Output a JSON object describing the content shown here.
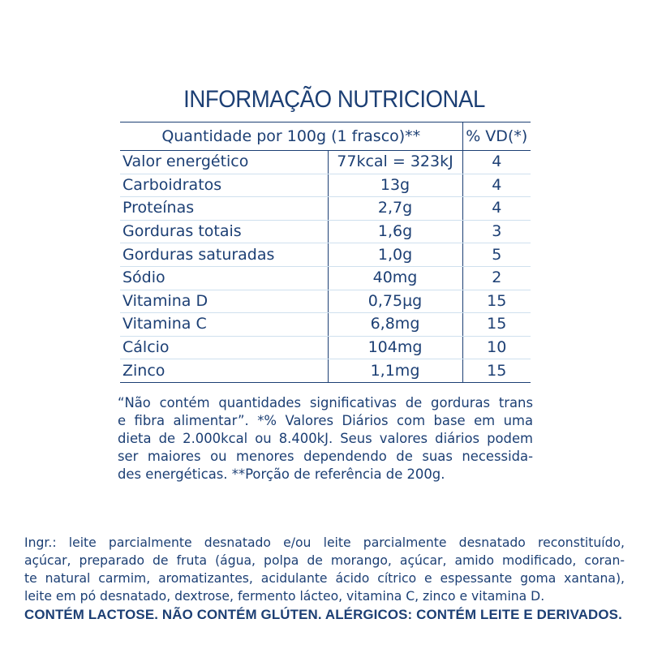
{
  "title": "INFORMAÇÃO NUTRICIONAL",
  "table": {
    "header_quantity": "Quantidade por 100g (1 frasco)**",
    "header_vd": "% VD(*)",
    "rows": [
      {
        "name": "Valor energético",
        "qty": "77kcal = 323kJ",
        "vd": "4"
      },
      {
        "name": "Carboidratos",
        "qty": "13g",
        "vd": "4"
      },
      {
        "name": "Proteínas",
        "qty": "2,7g",
        "vd": "4"
      },
      {
        "name": "Gorduras totais",
        "qty": "1,6g",
        "vd": "3"
      },
      {
        "name": "Gorduras saturadas",
        "qty": "1,0g",
        "vd": "5"
      },
      {
        "name": "Sódio",
        "qty": "40mg",
        "vd": "2"
      },
      {
        "name": "Vitamina D",
        "qty": "0,75µg",
        "vd": "15"
      },
      {
        "name": "Vitamina C",
        "qty": "6,8mg",
        "vd": "15"
      },
      {
        "name": "Cálcio",
        "qty": "104mg",
        "vd": "10"
      },
      {
        "name": "Zinco",
        "qty": "1,1mg",
        "vd": "15"
      }
    ]
  },
  "footnote": [
    "“Não contém quantidades significativas de gorduras trans",
    "e fibra alimentar”. *% Valores Diários com base em uma",
    "dieta de 2.000kcal ou 8.400kJ. Seus valores diários podem",
    "ser maiores ou menores dependendo de suas necessida-",
    "des energéticas. **Porção de referência de 200g."
  ],
  "ingredients": [
    "Ingr.: leite parcialmente desnatado e/ou leite parcialmente desnatado reconstituído,",
    "açúcar, preparado de fruta (água, polpa de morango, açúcar, amido modificado, coran-",
    "te natural carmim, aromatizantes, acidulante ácido cítrico e espessante goma xantana),",
    "leite em pó desnatado, dextrose, fermento lácteo, vitamina C, zinco e vitamina D."
  ],
  "allergens": "CONTÉM LACTOSE. NÃO CONTÉM GLÚTEN. ALÉRGICOS: CONTÉM LEITE E DERIVADOS."
}
